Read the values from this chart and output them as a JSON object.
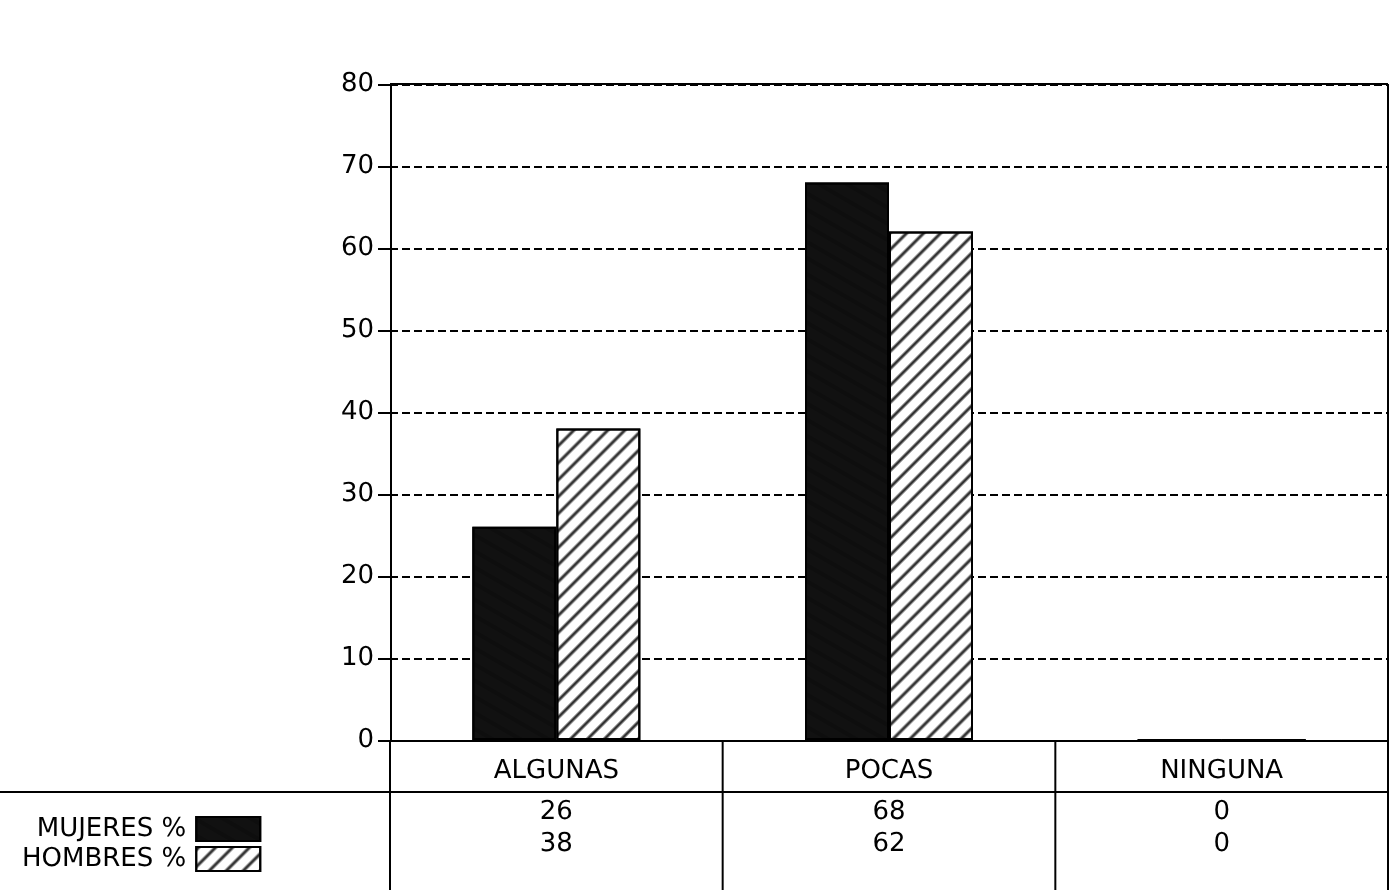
{
  "chart_data": {
    "type": "bar",
    "categories": [
      "ALGUNAS",
      "POCAS",
      "NINGUNA"
    ],
    "series": [
      {
        "name": "MUJERES %",
        "color": "#111111",
        "values": [
          26,
          68,
          0
        ]
      },
      {
        "name": "HOMBRES %",
        "color": "#ffffff",
        "values": [
          38,
          62,
          0
        ]
      }
    ],
    "ylim": [
      0,
      80
    ],
    "yticks": [
      0,
      10,
      20,
      30,
      40,
      50,
      60,
      70,
      80
    ],
    "grid": "y",
    "line_style": "dashed",
    "legend": "bottom left",
    "data_labels": true
  }
}
